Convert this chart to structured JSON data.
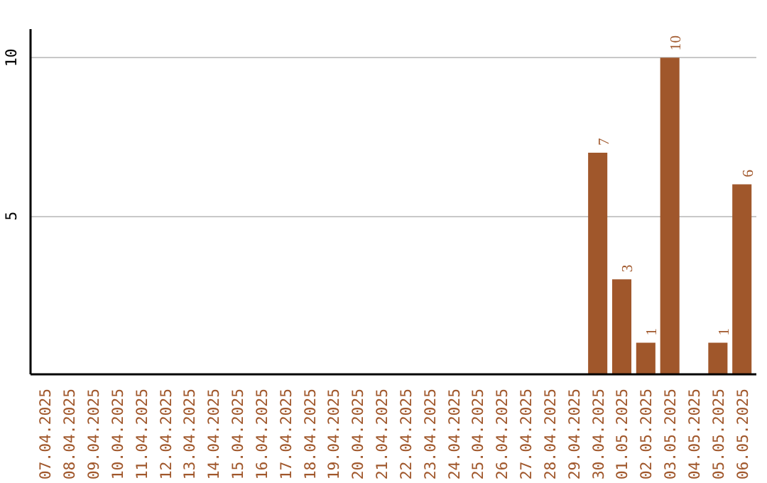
{
  "chart_data": {
    "type": "bar",
    "categories": [
      "07.04.2025",
      "08.04.2025",
      "09.04.2025",
      "10.04.2025",
      "11.04.2025",
      "12.04.2025",
      "13.04.2025",
      "14.04.2025",
      "15.04.2025",
      "16.04.2025",
      "17.04.2025",
      "18.04.2025",
      "19.04.2025",
      "20.04.2025",
      "21.04.2025",
      "22.04.2025",
      "23.04.2025",
      "24.04.2025",
      "25.04.2025",
      "26.04.2025",
      "27.04.2025",
      "28.04.2025",
      "29.04.2025",
      "30.04.2025",
      "01.05.2025",
      "02.05.2025",
      "03.05.2025",
      "04.05.2025",
      "05.05.2025",
      "06.05.2025"
    ],
    "values": [
      0,
      0,
      0,
      0,
      0,
      0,
      0,
      0,
      0,
      0,
      0,
      0,
      0,
      0,
      0,
      0,
      0,
      0,
      0,
      0,
      0,
      0,
      0,
      7,
      3,
      1,
      10,
      0,
      1,
      6
    ],
    "value_labels": [
      null,
      null,
      null,
      null,
      null,
      null,
      null,
      null,
      null,
      null,
      null,
      null,
      null,
      null,
      null,
      null,
      null,
      null,
      null,
      null,
      null,
      null,
      null,
      "7",
      "3",
      "1",
      "10",
      null,
      "1",
      "6"
    ],
    "color": "#a0572b",
    "ylim": [
      0,
      10.9
    ],
    "yticks": [
      5,
      10
    ],
    "grid": "y"
  }
}
